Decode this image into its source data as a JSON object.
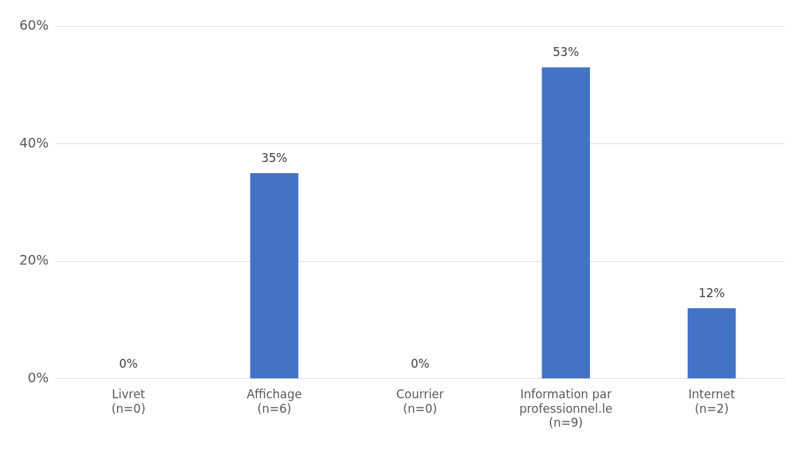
{
  "chart_data": {
    "type": "bar",
    "categories": [
      "Livret\n(n=0)",
      "Affichage\n(n=6)",
      "Courrier\n(n=0)",
      "Information par\nprofessionnel.le\n(n=9)",
      "Internet\n(n=2)"
    ],
    "values": [
      0,
      35,
      0,
      53,
      12
    ],
    "value_labels": [
      "0%",
      "35%",
      "0%",
      "53%",
      "12%"
    ],
    "color": "#4472c4",
    "ylim": [
      0,
      60
    ],
    "yticks": [
      {
        "value": 0,
        "label": "0%"
      },
      {
        "value": 20,
        "label": "20%"
      },
      {
        "value": 40,
        "label": "40%"
      },
      {
        "value": 60,
        "label": "60%"
      }
    ],
    "grid": "y",
    "legend": false
  }
}
